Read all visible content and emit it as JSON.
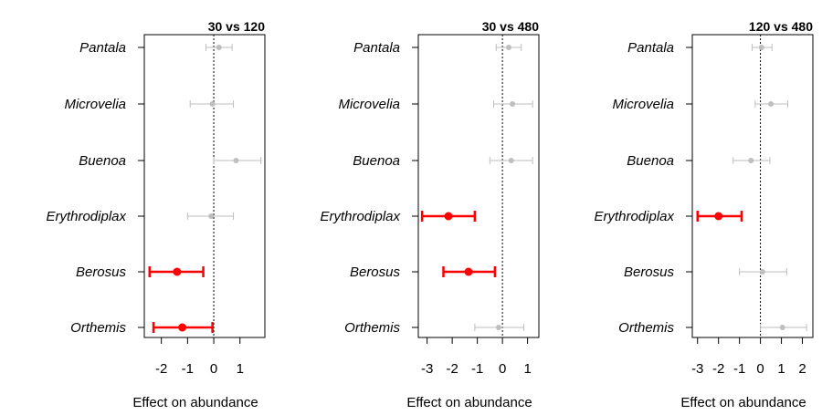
{
  "chart_data": [
    {
      "type": "forest",
      "title": "30 vs 120",
      "xlabel": "Effect on abundance",
      "categories": [
        "Pantala",
        "Microvelia",
        "Buenoa",
        "Erythrodiplax",
        "Berosus",
        "Orthemis"
      ],
      "xticks": [
        -2,
        -1,
        0,
        1
      ],
      "xticklabels": [
        "-2",
        "-1",
        "0",
        "1"
      ],
      "xlim": [
        -2.65,
        1.95
      ],
      "reference_line": 0,
      "points": [
        {
          "species": "Pantala",
          "estimate": 0.2,
          "lower": -0.3,
          "upper": 0.7,
          "significant": false
        },
        {
          "species": "Microvelia",
          "estimate": -0.05,
          "lower": -0.9,
          "upper": 0.75,
          "significant": false
        },
        {
          "species": "Buenoa",
          "estimate": 0.85,
          "lower": 0.0,
          "upper": 1.8,
          "significant": false
        },
        {
          "species": "Erythrodiplax",
          "estimate": -0.1,
          "lower": -1.0,
          "upper": 0.75,
          "significant": false
        },
        {
          "species": "Berosus",
          "estimate": -1.4,
          "lower": -2.45,
          "upper": -0.4,
          "significant": true
        },
        {
          "species": "Orthemis",
          "estimate": -1.2,
          "lower": -2.3,
          "upper": -0.05,
          "significant": true
        }
      ]
    },
    {
      "type": "forest",
      "title": "30 vs 480",
      "xlabel": "Effect on abundance",
      "categories": [
        "Pantala",
        "Microvelia",
        "Buenoa",
        "Erythrodiplax",
        "Berosus",
        "Orthemis"
      ],
      "xticks": [
        -3,
        -2,
        -1,
        0,
        1
      ],
      "xticklabels": [
        "-3",
        "-2",
        "-1",
        "0",
        "1"
      ],
      "xlim": [
        -3.35,
        1.45
      ],
      "reference_line": 0,
      "points": [
        {
          "species": "Pantala",
          "estimate": 0.25,
          "lower": -0.25,
          "upper": 0.75,
          "significant": false
        },
        {
          "species": "Microvelia",
          "estimate": 0.4,
          "lower": -0.35,
          "upper": 1.2,
          "significant": false
        },
        {
          "species": "Buenoa",
          "estimate": 0.35,
          "lower": -0.5,
          "upper": 1.2,
          "significant": false
        },
        {
          "species": "Erythrodiplax",
          "estimate": -2.15,
          "lower": -3.2,
          "upper": -1.1,
          "significant": true
        },
        {
          "species": "Berosus",
          "estimate": -1.35,
          "lower": -2.35,
          "upper": -0.3,
          "significant": true
        },
        {
          "species": "Orthemis",
          "estimate": -0.15,
          "lower": -1.1,
          "upper": 0.85,
          "significant": false
        }
      ]
    },
    {
      "type": "forest",
      "title": "120 vs 480",
      "xlabel": "Effect on abundance",
      "categories": [
        "Pantala",
        "Microvelia",
        "Buenoa",
        "Erythrodiplax",
        "Berosus",
        "Orthemis"
      ],
      "xticks": [
        -3,
        -2,
        -1,
        0,
        1,
        2
      ],
      "xticklabels": [
        "-3",
        "-2",
        "-1",
        "0",
        "1",
        "2"
      ],
      "xlim": [
        -3.25,
        2.5
      ],
      "reference_line": 0,
      "points": [
        {
          "species": "Pantala",
          "estimate": 0.05,
          "lower": -0.4,
          "upper": 0.55,
          "significant": false
        },
        {
          "species": "Microvelia",
          "estimate": 0.5,
          "lower": -0.25,
          "upper": 1.3,
          "significant": false
        },
        {
          "species": "Buenoa",
          "estimate": -0.45,
          "lower": -1.3,
          "upper": 0.45,
          "significant": false
        },
        {
          "species": "Erythrodiplax",
          "estimate": -2.0,
          "lower": -3.0,
          "upper": -0.9,
          "significant": true
        },
        {
          "species": "Berosus",
          "estimate": 0.1,
          "lower": -1.0,
          "upper": 1.25,
          "significant": false
        },
        {
          "species": "Orthemis",
          "estimate": 1.05,
          "lower": 0.0,
          "upper": 2.2,
          "significant": false
        }
      ]
    }
  ],
  "colors": {
    "significant": "#ff0000",
    "nonsignificant": "#bebebe",
    "axis": "#000000"
  }
}
